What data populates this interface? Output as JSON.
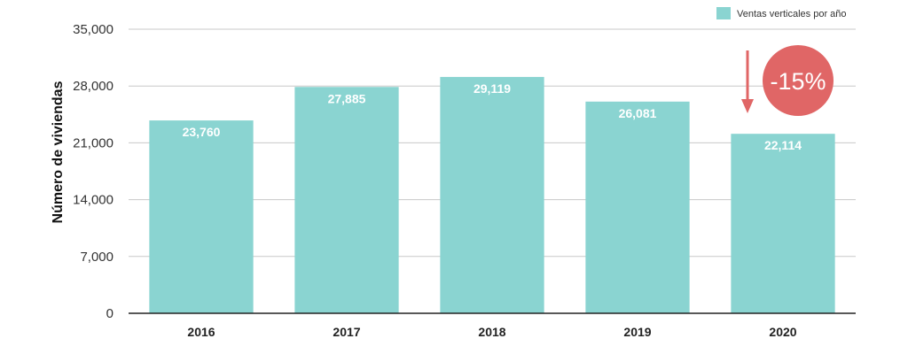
{
  "chart_data": {
    "type": "bar",
    "categories": [
      "2016",
      "2017",
      "2018",
      "2019",
      "2020"
    ],
    "series": [
      {
        "name": "Ventas verticales por año",
        "values": [
          23760,
          27885,
          29119,
          26081,
          22114
        ],
        "labels": [
          "23,760",
          "27,885",
          "29,119",
          "26,081",
          "22,114"
        ],
        "color": "#8ad4d1"
      }
    ],
    "ylabel": "Número de viviendas",
    "ylim": [
      0,
      35000
    ],
    "yticks": [
      0,
      7000,
      14000,
      21000,
      28000,
      35000
    ],
    "ytick_labels": [
      "0",
      "7,000",
      "14,000",
      "21,000",
      "28,000",
      "35,000"
    ],
    "grid": true,
    "legend_position": "top-right",
    "annotation": {
      "text": "-15%",
      "badge_color": "#e06666",
      "arrow_color": "#e06666"
    }
  }
}
